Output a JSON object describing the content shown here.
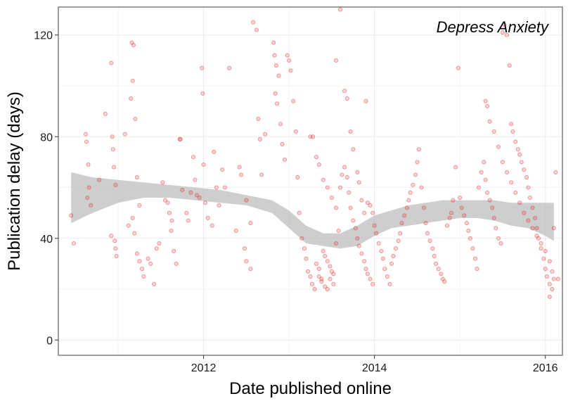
{
  "chart_data": {
    "type": "scatter",
    "title": "Depress Anxiety",
    "xlabel": "Date published online",
    "ylabel": "Publication delay (days)",
    "xlim": [
      2010.3,
      2016.2
    ],
    "ylim": [
      -6,
      131
    ],
    "x_ticks": [
      2012,
      2014,
      2016
    ],
    "y_ticks": [
      0,
      40,
      80,
      120
    ],
    "grid": true,
    "point_color": "#e31a1c",
    "band_color": "#b3b3b3",
    "points": [
      [
        2010.48,
        38
      ],
      [
        2010.45,
        49
      ],
      [
        2010.62,
        81
      ],
      [
        2010.63,
        78
      ],
      [
        2010.66,
        60
      ],
      [
        2010.64,
        56
      ],
      [
        2010.68,
        53
      ],
      [
        2010.65,
        69
      ],
      [
        2010.78,
        63
      ],
      [
        2010.85,
        89
      ],
      [
        2010.92,
        109
      ],
      [
        2010.93,
        80
      ],
      [
        2010.94,
        75
      ],
      [
        2010.95,
        68
      ],
      [
        2010.97,
        61
      ],
      [
        2010.96,
        39
      ],
      [
        2010.92,
        41
      ],
      [
        2010.97,
        36
      ],
      [
        2010.98,
        33
      ],
      [
        2011.08,
        81
      ],
      [
        2011.15,
        95
      ],
      [
        2011.16,
        117
      ],
      [
        2011.18,
        116
      ],
      [
        2011.17,
        102
      ],
      [
        2011.2,
        87
      ],
      [
        2011.22,
        64
      ],
      [
        2011.25,
        53
      ],
      [
        2011.17,
        48
      ],
      [
        2011.12,
        45
      ],
      [
        2011.19,
        42
      ],
      [
        2011.22,
        34
      ],
      [
        2011.25,
        31
      ],
      [
        2011.28,
        28
      ],
      [
        2011.3,
        25
      ],
      [
        2011.35,
        32
      ],
      [
        2011.38,
        30
      ],
      [
        2011.42,
        22
      ],
      [
        2011.45,
        36
      ],
      [
        2011.48,
        38
      ],
      [
        2011.52,
        62
      ],
      [
        2011.55,
        55
      ],
      [
        2011.58,
        54
      ],
      [
        2011.6,
        50
      ],
      [
        2011.62,
        43
      ],
      [
        2011.63,
        47
      ],
      [
        2011.65,
        35
      ],
      [
        2011.68,
        30
      ],
      [
        2011.72,
        79
      ],
      [
        2011.73,
        79
      ],
      [
        2011.75,
        59
      ],
      [
        2011.8,
        50
      ],
      [
        2011.82,
        47
      ],
      [
        2011.85,
        58
      ],
      [
        2011.88,
        72
      ],
      [
        2011.9,
        63
      ],
      [
        2011.92,
        57
      ],
      [
        2011.95,
        56
      ],
      [
        2011.98,
        107
      ],
      [
        2011.99,
        97
      ],
      [
        2012.0,
        69
      ],
      [
        2012.02,
        54
      ],
      [
        2012.05,
        48
      ],
      [
        2012.1,
        45
      ],
      [
        2012.12,
        74
      ],
      [
        2012.15,
        60
      ],
      [
        2012.18,
        53
      ],
      [
        2012.22,
        67
      ],
      [
        2012.25,
        60
      ],
      [
        2012.3,
        107
      ],
      [
        2012.38,
        43
      ],
      [
        2012.42,
        68
      ],
      [
        2012.44,
        65
      ],
      [
        2012.5,
        55
      ],
      [
        2012.55,
        46
      ],
      [
        2012.48,
        36
      ],
      [
        2012.5,
        31
      ],
      [
        2012.55,
        28
      ],
      [
        2012.58,
        125
      ],
      [
        2012.62,
        122
      ],
      [
        2012.64,
        87
      ],
      [
        2012.66,
        79
      ],
      [
        2012.68,
        65
      ],
      [
        2012.72,
        81
      ],
      [
        2012.82,
        117
      ],
      [
        2012.83,
        112
      ],
      [
        2012.85,
        108
      ],
      [
        2012.84,
        97
      ],
      [
        2012.86,
        93
      ],
      [
        2012.88,
        104
      ],
      [
        2012.9,
        85
      ],
      [
        2012.92,
        77
      ],
      [
        2012.95,
        71
      ],
      [
        2012.98,
        112
      ],
      [
        2013.0,
        110
      ],
      [
        2013.02,
        106
      ],
      [
        2013.05,
        94
      ],
      [
        2013.08,
        82
      ],
      [
        2013.1,
        64
      ],
      [
        2013.12,
        50
      ],
      [
        2013.15,
        40
      ],
      [
        2013.18,
        36
      ],
      [
        2013.2,
        32
      ],
      [
        2013.22,
        27
      ],
      [
        2013.25,
        25
      ],
      [
        2013.27,
        22
      ],
      [
        2013.3,
        20
      ],
      [
        2013.32,
        30
      ],
      [
        2013.35,
        28
      ],
      [
        2013.38,
        24
      ],
      [
        2013.4,
        35
      ],
      [
        2013.42,
        33
      ],
      [
        2013.45,
        31
      ],
      [
        2013.48,
        29
      ],
      [
        2013.5,
        27
      ],
      [
        2013.52,
        26
      ],
      [
        2013.55,
        38
      ],
      [
        2013.58,
        43
      ],
      [
        2013.6,
        60
      ],
      [
        2013.62,
        65
      ],
      [
        2013.65,
        68
      ],
      [
        2013.68,
        64
      ],
      [
        2013.7,
        58
      ],
      [
        2013.72,
        52
      ],
      [
        2013.75,
        47
      ],
      [
        2013.78,
        44
      ],
      [
        2013.8,
        40
      ],
      [
        2013.82,
        37
      ],
      [
        2013.85,
        34
      ],
      [
        2013.88,
        31
      ],
      [
        2013.9,
        28
      ],
      [
        2013.92,
        26
      ],
      [
        2013.95,
        24
      ],
      [
        2013.98,
        22
      ],
      [
        2013.25,
        80
      ],
      [
        2013.28,
        80
      ],
      [
        2013.32,
        72
      ],
      [
        2013.35,
        69
      ],
      [
        2013.4,
        63
      ],
      [
        2013.45,
        60
      ],
      [
        2013.5,
        56
      ],
      [
        2013.55,
        52
      ],
      [
        2013.35,
        25
      ],
      [
        2013.38,
        23
      ],
      [
        2013.42,
        21
      ],
      [
        2013.45,
        20
      ],
      [
        2013.48,
        24
      ],
      [
        2013.52,
        22
      ],
      [
        2013.55,
        110
      ],
      [
        2013.6,
        130
      ],
      [
        2013.65,
        98
      ],
      [
        2013.68,
        95
      ],
      [
        2013.72,
        82
      ],
      [
        2013.75,
        75
      ],
      [
        2013.8,
        66
      ],
      [
        2013.82,
        62
      ],
      [
        2013.85,
        55
      ],
      [
        2013.88,
        50
      ],
      [
        2013.9,
        94
      ],
      [
        2013.92,
        54
      ],
      [
        2013.95,
        53
      ],
      [
        2013.98,
        50
      ],
      [
        2014.0,
        45
      ],
      [
        2014.02,
        42
      ],
      [
        2014.05,
        38
      ],
      [
        2014.08,
        35
      ],
      [
        2014.1,
        32
      ],
      [
        2014.12,
        28
      ],
      [
        2014.15,
        25
      ],
      [
        2014.18,
        22
      ],
      [
        2014.2,
        30
      ],
      [
        2014.22,
        33
      ],
      [
        2014.25,
        36
      ],
      [
        2014.28,
        39
      ],
      [
        2014.3,
        42
      ],
      [
        2014.32,
        46
      ],
      [
        2014.35,
        49
      ],
      [
        2014.38,
        52
      ],
      [
        2014.4,
        55
      ],
      [
        2014.42,
        58
      ],
      [
        2014.45,
        61
      ],
      [
        2014.48,
        65
      ],
      [
        2014.5,
        70
      ],
      [
        2014.52,
        75
      ],
      [
        2014.55,
        60
      ],
      [
        2014.58,
        52
      ],
      [
        2014.6,
        46
      ],
      [
        2014.62,
        42
      ],
      [
        2014.65,
        39
      ],
      [
        2014.68,
        36
      ],
      [
        2014.7,
        33
      ],
      [
        2014.72,
        30
      ],
      [
        2014.75,
        28
      ],
      [
        2014.78,
        26
      ],
      [
        2014.8,
        24
      ],
      [
        2014.82,
        23
      ],
      [
        2014.85,
        45
      ],
      [
        2014.88,
        48
      ],
      [
        2014.9,
        50
      ],
      [
        2014.92,
        55
      ],
      [
        2014.95,
        68
      ],
      [
        2014.98,
        107
      ],
      [
        2015.0,
        56
      ],
      [
        2015.02,
        52
      ],
      [
        2015.05,
        49
      ],
      [
        2015.08,
        46
      ],
      [
        2015.1,
        43
      ],
      [
        2015.12,
        40
      ],
      [
        2015.15,
        36
      ],
      [
        2015.18,
        32
      ],
      [
        2015.2,
        28
      ],
      [
        2015.22,
        60
      ],
      [
        2015.25,
        66
      ],
      [
        2015.28,
        70
      ],
      [
        2015.3,
        63
      ],
      [
        2015.32,
        58
      ],
      [
        2015.35,
        55
      ],
      [
        2015.38,
        52
      ],
      [
        2015.4,
        48
      ],
      [
        2015.42,
        44
      ],
      [
        2015.45,
        40
      ],
      [
        2015.48,
        38
      ],
      [
        2015.5,
        121
      ],
      [
        2015.52,
        124
      ],
      [
        2015.55,
        120
      ],
      [
        2015.58,
        108
      ],
      [
        2015.6,
        85
      ],
      [
        2015.62,
        82
      ],
      [
        2015.65,
        78
      ],
      [
        2015.68,
        75
      ],
      [
        2015.7,
        73
      ],
      [
        2015.72,
        70
      ],
      [
        2015.75,
        67
      ],
      [
        2015.78,
        64
      ],
      [
        2015.8,
        60
      ],
      [
        2015.82,
        56
      ],
      [
        2015.85,
        52
      ],
      [
        2015.88,
        48
      ],
      [
        2015.9,
        44
      ],
      [
        2015.92,
        40
      ],
      [
        2015.95,
        36
      ],
      [
        2015.98,
        32
      ],
      [
        2016.0,
        28
      ],
      [
        2016.02,
        25
      ],
      [
        2016.05,
        22
      ],
      [
        2016.08,
        20
      ],
      [
        2016.1,
        24
      ],
      [
        2015.3,
        94
      ],
      [
        2015.32,
        92
      ],
      [
        2015.35,
        86
      ],
      [
        2015.4,
        82
      ],
      [
        2015.45,
        76
      ],
      [
        2015.5,
        70
      ],
      [
        2015.55,
        66
      ],
      [
        2015.6,
        62
      ],
      [
        2015.65,
        58
      ],
      [
        2015.7,
        54
      ],
      [
        2015.75,
        50
      ],
      [
        2015.8,
        47
      ],
      [
        2015.85,
        44
      ],
      [
        2015.9,
        41
      ],
      [
        2015.95,
        38
      ],
      [
        2016.0,
        35
      ],
      [
        2016.05,
        31
      ],
      [
        2016.08,
        27
      ],
      [
        2016.1,
        44
      ],
      [
        2016.12,
        66
      ],
      [
        2016.15,
        24
      ],
      [
        2016.05,
        17
      ]
    ],
    "band": {
      "x": [
        2010.45,
        2010.7,
        2011.0,
        2011.3,
        2011.6,
        2011.9,
        2012.2,
        2012.5,
        2012.8,
        2013.0,
        2013.2,
        2013.4,
        2013.6,
        2013.8,
        2014.0,
        2014.2,
        2014.4,
        2014.6,
        2014.8,
        2015.0,
        2015.2,
        2015.4,
        2015.6,
        2015.8,
        2016.0,
        2016.1
      ],
      "upper": [
        66,
        64,
        63,
        62,
        61,
        60,
        59,
        57,
        55,
        51,
        45,
        42,
        42,
        45,
        49,
        51,
        53,
        54,
        55,
        55,
        55,
        55,
        54,
        54,
        54,
        54
      ],
      "lower": [
        46,
        50,
        54,
        56,
        56,
        55,
        54,
        53,
        50,
        44,
        38,
        37,
        36,
        37,
        41,
        44,
        45,
        46,
        47,
        48,
        48,
        47,
        45,
        44,
        41,
        39
      ]
    }
  }
}
